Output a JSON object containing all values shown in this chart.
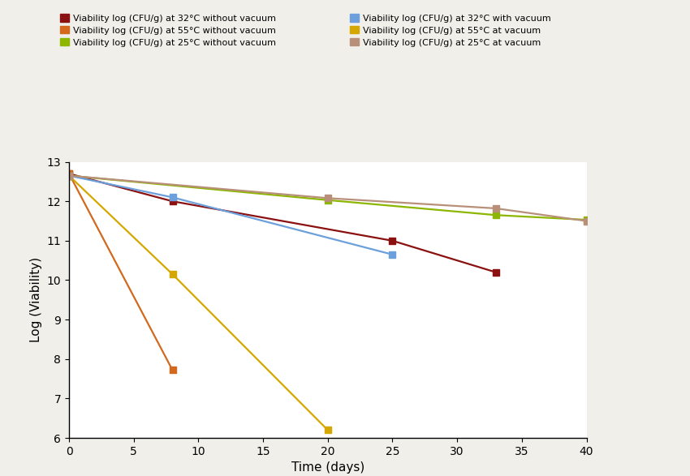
{
  "series": [
    {
      "label": "Viability log (CFU/g) at 32°C without vacuum",
      "color": "#8B1010",
      "x": [
        0,
        8,
        25,
        33
      ],
      "y": [
        12.7,
        12.0,
        11.0,
        10.2
      ]
    },
    {
      "label": "Viability log (CFU/g) at 55°C without vacuum",
      "color": "#D2691E",
      "x": [
        0,
        8
      ],
      "y": [
        12.7,
        7.72
      ]
    },
    {
      "label": "Viability log (CFU/g) at 25°C without vacuum",
      "color": "#8DB600",
      "x": [
        0,
        20,
        33,
        40
      ],
      "y": [
        12.65,
        12.03,
        11.65,
        11.53
      ]
    },
    {
      "label": "Viability log (CFU/g) at 32°C with vacuum",
      "color": "#6CA0DC",
      "x": [
        0,
        8,
        25
      ],
      "y": [
        12.65,
        12.1,
        10.65
      ]
    },
    {
      "label": "Viability log (CFU/g) at 55°C at vacuum",
      "color": "#D4A800",
      "x": [
        0,
        8,
        20
      ],
      "y": [
        12.65,
        10.15,
        6.2
      ]
    },
    {
      "label": "Viability log (CFU/g) at 25°C at vacuum",
      "color": "#B8907A",
      "x": [
        0,
        20,
        33,
        40
      ],
      "y": [
        12.65,
        12.08,
        11.82,
        11.5
      ]
    }
  ],
  "xlabel": "Time (days)",
  "ylabel": "Log (Viability)",
  "xlim": [
    0,
    40
  ],
  "ylim": [
    6,
    13
  ],
  "xticks": [
    0,
    5,
    10,
    15,
    20,
    25,
    30,
    35,
    40
  ],
  "yticks": [
    6,
    7,
    8,
    9,
    10,
    11,
    12,
    13
  ],
  "marker": "s",
  "markersize": 6,
  "linewidth": 1.6,
  "fig_bg": "#FFFFFF",
  "outer_bg": "#F0EFEA"
}
